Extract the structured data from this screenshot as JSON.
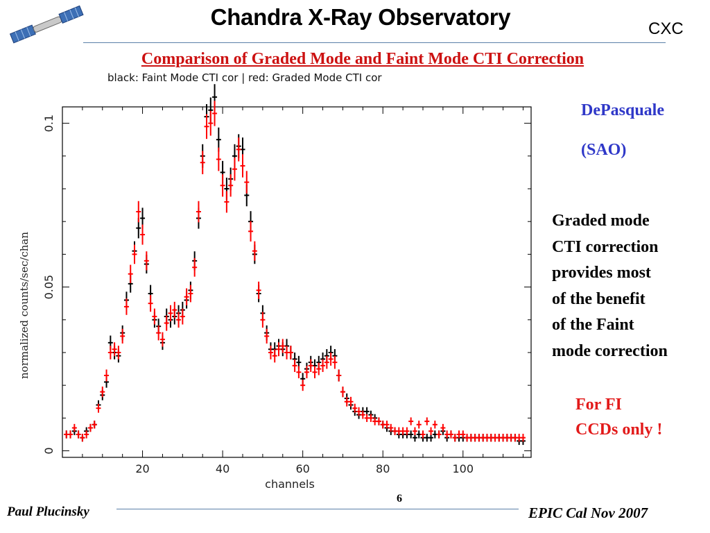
{
  "header": {
    "title": "Chandra X-Ray Observatory",
    "org": "CXC",
    "logo_icon": "satellite-icon"
  },
  "slide": {
    "title": "Comparison of Graded Mode and Faint Mode CTI Correction"
  },
  "author": {
    "name": "DePasquale",
    "affiliation": "(SAO)"
  },
  "body_lines": [
    "Graded mode",
    "CTI correction",
    "provides most",
    "of the benefit",
    "of the Faint",
    "mode correction"
  ],
  "note_lines": [
    "For FI",
    "CCDs only !"
  ],
  "footer": {
    "left": "Paul Plucinsky",
    "page": "6",
    "right": "EPIC Cal Nov 2007"
  },
  "colors": {
    "title_red": "#cc1111",
    "author_blue": "#2f38c8",
    "note_red": "#e21a1a",
    "rule_blue": "#5a7fa8",
    "series_black": "#000000",
    "series_red": "#ff0000"
  },
  "chart_data": {
    "type": "scatter",
    "caption": "black: Faint Mode CTI cor | red: Graded Mode CTI cor",
    "xlabel": "channels",
    "ylabel": "normalized counts/sec/chan",
    "xlim": [
      0,
      117
    ],
    "ylim": [
      -0.002,
      0.105
    ],
    "xticks": [
      20,
      40,
      60,
      80,
      100
    ],
    "xtick_labels": [
      "20",
      "40",
      "60",
      "80",
      "100"
    ],
    "yticks": [
      0,
      0.05,
      0.1
    ],
    "ytick_labels": [
      "0",
      "0.05",
      "0.1"
    ],
    "grid": false,
    "series": [
      {
        "color": "black",
        "x": [
          1,
          2,
          3,
          4,
          5,
          6,
          7,
          8,
          9,
          10,
          11,
          12,
          13,
          14,
          15,
          16,
          17,
          18,
          19,
          20,
          21,
          22,
          23,
          24,
          25,
          26,
          27,
          28,
          29,
          30,
          31,
          32,
          33,
          34,
          35,
          36,
          37,
          38,
          39,
          40,
          41,
          42,
          43,
          44,
          45,
          46,
          47,
          48,
          49,
          50,
          51,
          52,
          53,
          54,
          55,
          56,
          57,
          58,
          59,
          60,
          61,
          62,
          63,
          64,
          65,
          66,
          67,
          68,
          69,
          70,
          71,
          72,
          73,
          74,
          75,
          76,
          77,
          78,
          79,
          80,
          81,
          82,
          83,
          84,
          85,
          86,
          87,
          88,
          89,
          90,
          91,
          92,
          93,
          94,
          95,
          96,
          97,
          98,
          99,
          100,
          101,
          102,
          103,
          104,
          105,
          106,
          107,
          108,
          109,
          110,
          111,
          112,
          113,
          114,
          115
        ],
        "y": [
          0.005,
          0.005,
          0.006,
          0.005,
          0.004,
          0.006,
          0.007,
          0.008,
          0.014,
          0.017,
          0.021,
          0.033,
          0.03,
          0.029,
          0.036,
          0.046,
          0.051,
          0.061,
          0.068,
          0.071,
          0.057,
          0.048,
          0.04,
          0.038,
          0.033,
          0.041,
          0.04,
          0.041,
          0.042,
          0.043,
          0.046,
          0.049,
          0.058,
          0.071,
          0.09,
          0.102,
          0.104,
          0.108,
          0.095,
          0.085,
          0.08,
          0.083,
          0.09,
          0.093,
          0.092,
          0.078,
          0.07,
          0.06,
          0.048,
          0.042,
          0.036,
          0.031,
          0.031,
          0.032,
          0.031,
          0.032,
          0.03,
          0.028,
          0.027,
          0.022,
          0.025,
          0.027,
          0.026,
          0.027,
          0.028,
          0.029,
          0.03,
          0.029,
          0.023,
          0.018,
          0.016,
          0.014,
          0.012,
          0.011,
          0.012,
          0.012,
          0.011,
          0.01,
          0.009,
          0.008,
          0.007,
          0.006,
          0.006,
          0.005,
          0.005,
          0.005,
          0.005,
          0.004,
          0.005,
          0.004,
          0.004,
          0.004,
          0.005,
          0.005,
          0.006,
          0.004,
          0.005,
          0.004,
          0.004,
          0.004,
          0.004,
          0.004,
          0.004,
          0.004,
          0.004,
          0.004,
          0.004,
          0.004,
          0.004,
          0.004,
          0.004,
          0.004,
          0.004,
          0.003,
          0.003
        ]
      },
      {
        "color": "red",
        "x": [
          1,
          2,
          3,
          4,
          5,
          6,
          7,
          8,
          9,
          10,
          11,
          12,
          13,
          14,
          15,
          16,
          17,
          18,
          19,
          20,
          21,
          22,
          23,
          24,
          25,
          26,
          27,
          28,
          29,
          30,
          31,
          32,
          33,
          34,
          35,
          36,
          37,
          38,
          39,
          40,
          41,
          42,
          43,
          44,
          45,
          46,
          47,
          48,
          49,
          50,
          51,
          52,
          53,
          54,
          55,
          56,
          57,
          58,
          59,
          60,
          61,
          62,
          63,
          64,
          65,
          66,
          67,
          68,
          69,
          70,
          71,
          72,
          73,
          74,
          75,
          76,
          77,
          78,
          79,
          80,
          81,
          82,
          83,
          84,
          85,
          86,
          87,
          88,
          89,
          90,
          91,
          92,
          93,
          94,
          95,
          96,
          97,
          98,
          99,
          100,
          101,
          102,
          103,
          104,
          105,
          106,
          107,
          108,
          109,
          110,
          111,
          112,
          113,
          114,
          115
        ],
        "y": [
          0.005,
          0.005,
          0.007,
          0.005,
          0.004,
          0.005,
          0.007,
          0.008,
          0.013,
          0.018,
          0.023,
          0.03,
          0.031,
          0.03,
          0.035,
          0.044,
          0.054,
          0.06,
          0.073,
          0.066,
          0.058,
          0.045,
          0.041,
          0.036,
          0.034,
          0.039,
          0.042,
          0.043,
          0.04,
          0.041,
          0.047,
          0.048,
          0.056,
          0.073,
          0.088,
          0.099,
          0.1,
          0.103,
          0.089,
          0.081,
          0.076,
          0.081,
          0.086,
          0.092,
          0.087,
          0.082,
          0.067,
          0.061,
          0.049,
          0.04,
          0.035,
          0.03,
          0.029,
          0.031,
          0.032,
          0.03,
          0.03,
          0.026,
          0.024,
          0.02,
          0.024,
          0.026,
          0.024,
          0.025,
          0.026,
          0.027,
          0.028,
          0.027,
          0.023,
          0.018,
          0.015,
          0.015,
          0.013,
          0.012,
          0.011,
          0.01,
          0.01,
          0.009,
          0.009,
          0.008,
          0.008,
          0.007,
          0.006,
          0.006,
          0.006,
          0.006,
          0.009,
          0.006,
          0.008,
          0.005,
          0.009,
          0.006,
          0.008,
          0.005,
          0.007,
          0.005,
          0.005,
          0.004,
          0.005,
          0.005,
          0.004,
          0.004,
          0.004,
          0.004,
          0.004,
          0.004,
          0.004,
          0.004,
          0.004,
          0.004,
          0.004,
          0.004,
          0.004,
          0.004,
          0.004
        ]
      }
    ]
  }
}
